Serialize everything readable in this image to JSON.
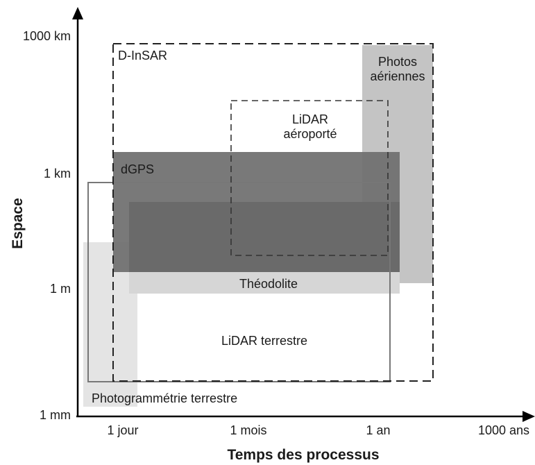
{
  "axes": {
    "x_title": "Temps des processus",
    "y_title": "Espace",
    "x_ticks": [
      "1 jour",
      "1 mois",
      "1 an",
      "1000 ans"
    ],
    "y_ticks": [
      "1000 km",
      "1 km",
      "1 m",
      "1 mm"
    ]
  },
  "regions": {
    "dinsar": "D-InSAR",
    "photos_line1": "Photos",
    "photos_line2": "aériennes",
    "lidar_aero_line1": "LiDAR",
    "lidar_aero_line2": "aéroporté",
    "dgps": "dGPS",
    "theodolite": "Théodolite",
    "lidar_terrestre": "LiDAR terrestre",
    "photogrammetrie": "Photogrammétrie terrestre"
  },
  "colors": {
    "axis": "#000000",
    "photos_fill": "#c4c4c4",
    "dgps_fill": "#6e6e6e",
    "theodolite_fill": "#d6d6d6",
    "photogrammetrie_fill": "#e4e4e4",
    "dashed_border": "#222222",
    "solid_border": "#777777"
  }
}
